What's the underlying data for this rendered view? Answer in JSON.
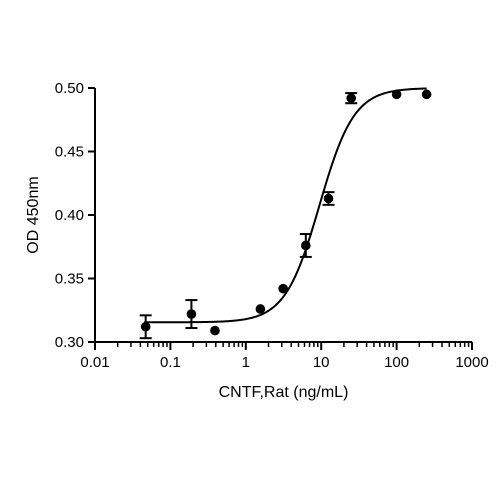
{
  "chart_data": {
    "type": "scatter",
    "title": "",
    "xlabel": "CNTF,Rat (ng/mL)",
    "ylabel": "OD 450nm",
    "x_scale": "log",
    "xlim": [
      0.01,
      1000
    ],
    "ylim": [
      0.3,
      0.5
    ],
    "x_ticks": [
      0.01,
      0.1,
      1,
      10,
      100,
      1000
    ],
    "x_tick_labels": [
      "0.01",
      "0.1",
      "1",
      "10",
      "100",
      "1000"
    ],
    "y_ticks": [
      0.3,
      0.35,
      0.4,
      0.45,
      0.5
    ],
    "y_tick_labels": [
      "0.30",
      "0.35",
      "0.40",
      "0.45",
      "0.50"
    ],
    "grid": false,
    "legend": "none",
    "series": [
      {
        "points": [
          {
            "x": 0.047,
            "y": 0.312,
            "err": 0.009
          },
          {
            "x": 0.19,
            "y": 0.322,
            "err": 0.011
          },
          {
            "x": 0.39,
            "y": 0.309,
            "err": 0
          },
          {
            "x": 1.56,
            "y": 0.326,
            "err": 0
          },
          {
            "x": 3.13,
            "y": 0.342,
            "err": 0
          },
          {
            "x": 6.25,
            "y": 0.376,
            "err": 0.009
          },
          {
            "x": 12.5,
            "y": 0.413,
            "err": 0.005
          },
          {
            "x": 25,
            "y": 0.492,
            "err": 0.004
          },
          {
            "x": 100,
            "y": 0.495,
            "err": 0
          },
          {
            "x": 250,
            "y": 0.495,
            "err": 0
          }
        ]
      }
    ],
    "fit_curve": {
      "model": "4PL",
      "bottom": 0.3155,
      "top": 0.5,
      "ec50": 9.5,
      "hill": 1.9,
      "x_range": [
        0.045,
        250
      ]
    },
    "colors": {
      "points": "#000000",
      "curve": "#000000",
      "axes": "#000000"
    }
  }
}
